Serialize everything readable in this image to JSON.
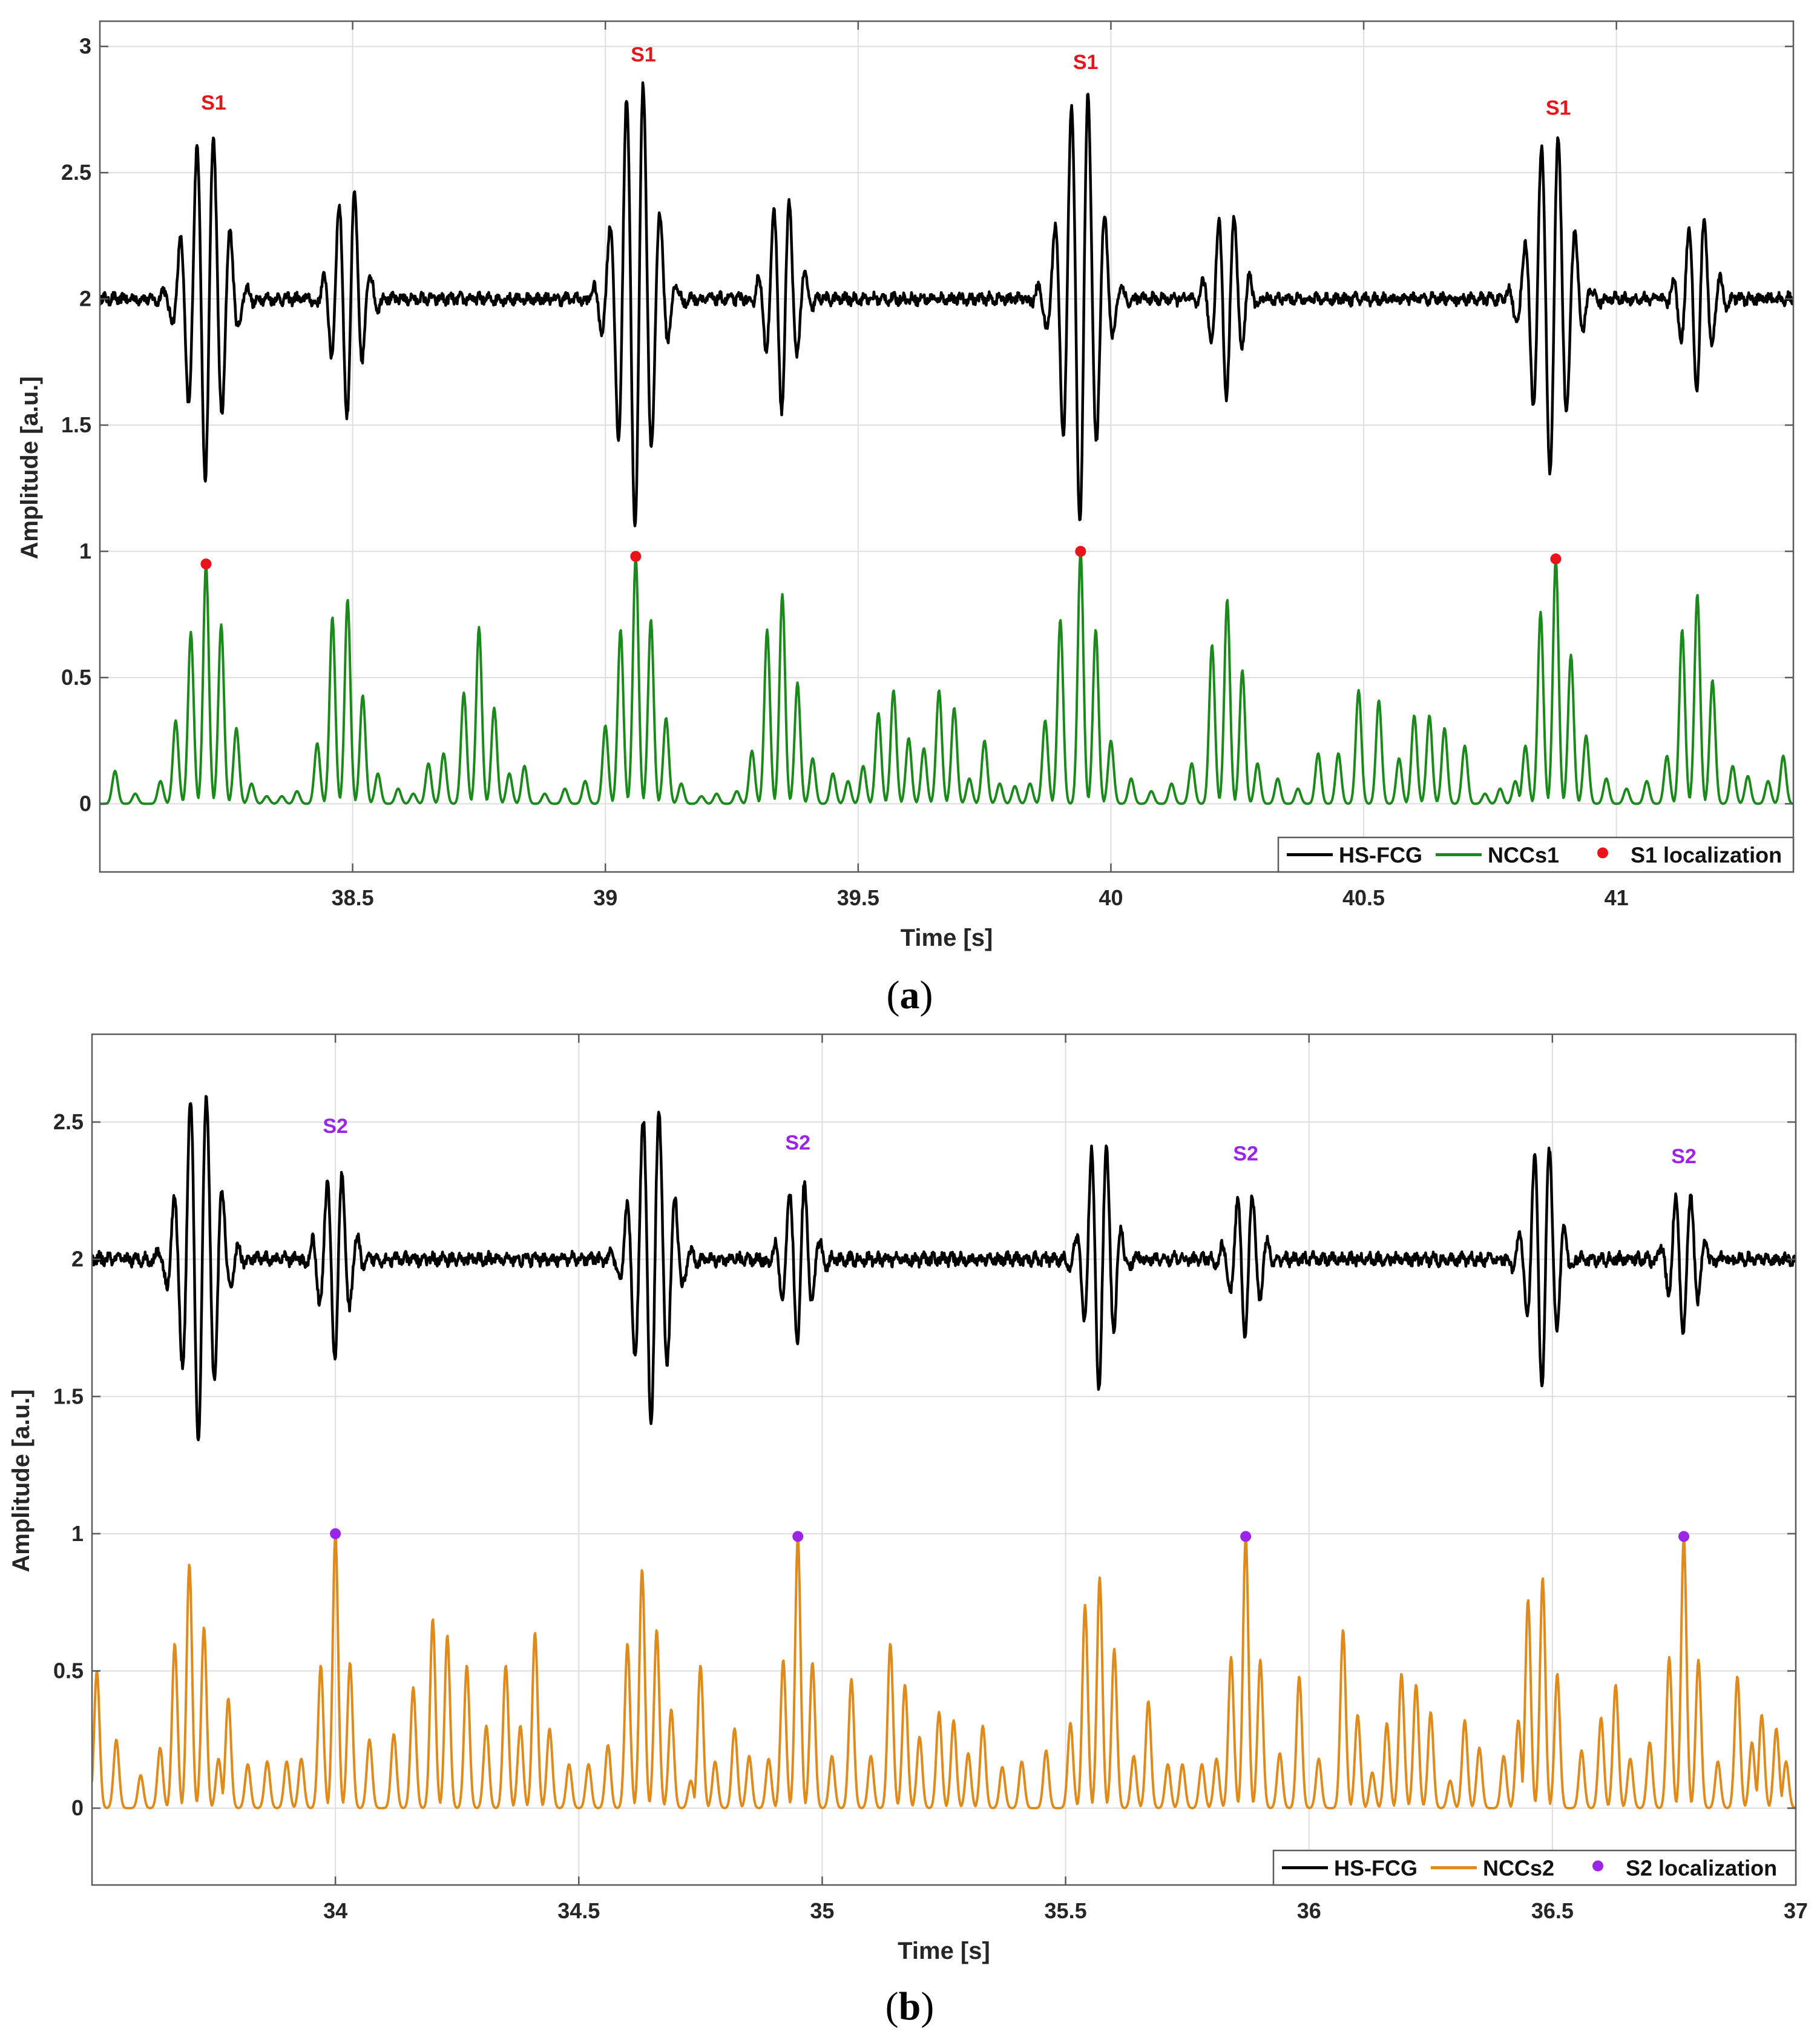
{
  "chart_data": [
    {
      "type": "line",
      "panel_label": "a",
      "xlabel": "Time [s]",
      "ylabel": "Amplitude [a.u.]",
      "xlim": [
        38.0,
        41.35
      ],
      "ylim": [
        -0.27,
        3.1
      ],
      "xticks": [
        38.5,
        39,
        39.5,
        40,
        40.5,
        41
      ],
      "xtick_labels": [
        "38.5",
        "39",
        "39.5",
        "40",
        "40.5",
        "41"
      ],
      "yticks": [
        0,
        0.5,
        1,
        1.5,
        2,
        2.5,
        3
      ],
      "ytick_labels": [
        "0",
        "0.5",
        "1",
        "1.5",
        "2",
        "2.5",
        "3"
      ],
      "grid": true,
      "legend_position": "bottom-right",
      "legend": [
        "HS-FCG",
        "NCCs1",
        "S1 localization"
      ],
      "colors": {
        "signal": "#000000",
        "ncc": "#1a8a1a",
        "marker": "#e8141a",
        "annotation": "#e8141a"
      },
      "signal": {
        "name": "HS-FCG",
        "baseline": 2.0,
        "bursts": [
          {
            "t": 38.21,
            "peak": 2.67,
            "trough": 1.26,
            "label": "S1"
          },
          {
            "t": 38.49,
            "peak": 2.52,
            "trough": 1.58,
            "label": ""
          },
          {
            "t": 39.06,
            "peak": 2.87,
            "trough": 1.03,
            "label": "S1"
          },
          {
            "t": 39.35,
            "peak": 2.51,
            "trough": 1.64,
            "label": ""
          },
          {
            "t": 39.94,
            "peak": 2.85,
            "trough": 1.08,
            "label": "S1"
          },
          {
            "t": 40.23,
            "peak": 2.41,
            "trough": 1.65,
            "label": ""
          },
          {
            "t": 40.87,
            "peak": 2.64,
            "trough": 1.25,
            "label": "S1"
          },
          {
            "t": 41.16,
            "peak": 2.37,
            "trough": 1.65,
            "label": ""
          }
        ]
      },
      "ncc": {
        "name": "NCCs1",
        "peaks": [
          [
            38.03,
            0.13
          ],
          [
            38.07,
            0.04
          ],
          [
            38.12,
            0.09
          ],
          [
            38.15,
            0.33
          ],
          [
            38.18,
            0.68
          ],
          [
            38.21,
            0.95
          ],
          [
            38.24,
            0.71
          ],
          [
            38.27,
            0.3
          ],
          [
            38.3,
            0.08
          ],
          [
            38.33,
            0.03
          ],
          [
            38.36,
            0.03
          ],
          [
            38.39,
            0.05
          ],
          [
            38.43,
            0.24
          ],
          [
            38.46,
            0.74
          ],
          [
            38.49,
            0.81
          ],
          [
            38.52,
            0.43
          ],
          [
            38.55,
            0.12
          ],
          [
            38.59,
            0.06
          ],
          [
            38.62,
            0.04
          ],
          [
            38.65,
            0.16
          ],
          [
            38.68,
            0.2
          ],
          [
            38.72,
            0.44
          ],
          [
            38.75,
            0.7
          ],
          [
            38.78,
            0.38
          ],
          [
            38.81,
            0.12
          ],
          [
            38.84,
            0.15
          ],
          [
            38.88,
            0.04
          ],
          [
            38.92,
            0.06
          ],
          [
            38.96,
            0.09
          ],
          [
            39.0,
            0.31
          ],
          [
            39.03,
            0.69
          ],
          [
            39.06,
            0.98
          ],
          [
            39.09,
            0.73
          ],
          [
            39.12,
            0.34
          ],
          [
            39.15,
            0.08
          ],
          [
            39.19,
            0.03
          ],
          [
            39.22,
            0.04
          ],
          [
            39.26,
            0.05
          ],
          [
            39.29,
            0.21
          ],
          [
            39.32,
            0.69
          ],
          [
            39.35,
            0.83
          ],
          [
            39.38,
            0.48
          ],
          [
            39.41,
            0.18
          ],
          [
            39.45,
            0.12
          ],
          [
            39.48,
            0.09
          ],
          [
            39.51,
            0.15
          ],
          [
            39.54,
            0.36
          ],
          [
            39.57,
            0.45
          ],
          [
            39.6,
            0.26
          ],
          [
            39.63,
            0.22
          ],
          [
            39.66,
            0.45
          ],
          [
            39.69,
            0.38
          ],
          [
            39.72,
            0.1
          ],
          [
            39.75,
            0.25
          ],
          [
            39.78,
            0.08
          ],
          [
            39.81,
            0.07
          ],
          [
            39.84,
            0.08
          ],
          [
            39.87,
            0.33
          ],
          [
            39.9,
            0.73
          ],
          [
            39.94,
            1.0
          ],
          [
            39.97,
            0.69
          ],
          [
            40.0,
            0.25
          ],
          [
            40.04,
            0.1
          ],
          [
            40.08,
            0.05
          ],
          [
            40.12,
            0.08
          ],
          [
            40.16,
            0.16
          ],
          [
            40.2,
            0.63
          ],
          [
            40.23,
            0.81
          ],
          [
            40.26,
            0.53
          ],
          [
            40.29,
            0.16
          ],
          [
            40.33,
            0.1
          ],
          [
            40.37,
            0.06
          ],
          [
            40.41,
            0.2
          ],
          [
            40.45,
            0.2
          ],
          [
            40.49,
            0.45
          ],
          [
            40.53,
            0.41
          ],
          [
            40.57,
            0.18
          ],
          [
            40.6,
            0.35
          ],
          [
            40.63,
            0.35
          ],
          [
            40.66,
            0.3
          ],
          [
            40.7,
            0.23
          ],
          [
            40.74,
            0.04
          ],
          [
            40.77,
            0.06
          ],
          [
            40.8,
            0.09
          ],
          [
            40.82,
            0.23
          ],
          [
            40.85,
            0.76
          ],
          [
            40.88,
            0.97
          ],
          [
            40.91,
            0.59
          ],
          [
            40.94,
            0.27
          ],
          [
            40.98,
            0.1
          ],
          [
            41.02,
            0.06
          ],
          [
            41.06,
            0.09
          ],
          [
            41.1,
            0.19
          ],
          [
            41.13,
            0.69
          ],
          [
            41.16,
            0.83
          ],
          [
            41.19,
            0.49
          ],
          [
            41.23,
            0.15
          ],
          [
            41.26,
            0.11
          ],
          [
            41.3,
            0.09
          ],
          [
            41.33,
            0.19
          ]
        ]
      },
      "localization": {
        "name": "S1 localization",
        "points": [
          [
            38.21,
            0.95
          ],
          [
            39.06,
            0.98
          ],
          [
            39.94,
            1.0
          ],
          [
            40.88,
            0.97
          ]
        ]
      },
      "annotations": [
        {
          "text": "S1",
          "x": 38.225,
          "y": 2.75
        },
        {
          "text": "S1",
          "x": 39.075,
          "y": 2.94
        },
        {
          "text": "S1",
          "x": 39.95,
          "y": 2.91
        },
        {
          "text": "S1",
          "x": 40.885,
          "y": 2.73
        }
      ]
    },
    {
      "type": "line",
      "panel_label": "b",
      "xlabel": "Time [s]",
      "ylabel": "Amplitude [a.u.]",
      "xlim": [
        33.5,
        37.0
      ],
      "ylim": [
        -0.28,
        2.82
      ],
      "xticks": [
        34,
        34.5,
        35,
        35.5,
        36,
        36.5,
        37
      ],
      "xtick_labels": [
        "34",
        "34.5",
        "35",
        "35.5",
        "36",
        "36.5",
        "37"
      ],
      "yticks": [
        0,
        0.5,
        1,
        1.5,
        2,
        2.5
      ],
      "ytick_labels": [
        "0",
        "0.5",
        "1",
        "1.5",
        "2",
        "2.5"
      ],
      "grid": true,
      "legend_position": "bottom-right",
      "legend": [
        "HS-FCG",
        "NCCs2",
        "S2 localization"
      ],
      "colors": {
        "signal": "#000000",
        "ncc": "#e08a1a",
        "marker": "#9a24e8",
        "annotation": "#9a24e8"
      },
      "signal": {
        "name": "HS-FCG",
        "baseline": 2.0,
        "bursts": [
          {
            "t": 33.72,
            "peak": 2.6,
            "trough": 1.27,
            "label": ""
          },
          {
            "t": 34.0,
            "peak": 2.41,
            "trough": 1.7,
            "label": "S2"
          },
          {
            "t": 34.65,
            "peak": 2.53,
            "trough": 1.34,
            "label": ""
          },
          {
            "t": 34.95,
            "peak": 2.36,
            "trough": 1.75,
            "label": "S2"
          },
          {
            "t": 35.57,
            "peak": 2.44,
            "trough": 1.49,
            "label": ""
          },
          {
            "t": 35.87,
            "peak": 2.31,
            "trough": 1.77,
            "label": "S2"
          },
          {
            "t": 36.48,
            "peak": 2.44,
            "trough": 1.5,
            "label": ""
          },
          {
            "t": 36.77,
            "peak": 2.31,
            "trough": 1.77,
            "label": "S2"
          }
        ]
      },
      "ncc": {
        "name": "NCCs2",
        "peaks": [
          [
            33.51,
            0.5
          ],
          [
            33.55,
            0.25
          ],
          [
            33.6,
            0.12
          ],
          [
            33.64,
            0.22
          ],
          [
            33.67,
            0.6
          ],
          [
            33.7,
            0.89
          ],
          [
            33.73,
            0.66
          ],
          [
            33.76,
            0.18
          ],
          [
            33.78,
            0.4
          ],
          [
            33.82,
            0.16
          ],
          [
            33.86,
            0.17
          ],
          [
            33.9,
            0.17
          ],
          [
            33.93,
            0.18
          ],
          [
            33.97,
            0.52
          ],
          [
            34.0,
            1.0
          ],
          [
            34.03,
            0.53
          ],
          [
            34.07,
            0.25
          ],
          [
            34.12,
            0.27
          ],
          [
            34.16,
            0.44
          ],
          [
            34.2,
            0.69
          ],
          [
            34.23,
            0.63
          ],
          [
            34.27,
            0.52
          ],
          [
            34.31,
            0.3
          ],
          [
            34.35,
            0.52
          ],
          [
            34.38,
            0.3
          ],
          [
            34.41,
            0.64
          ],
          [
            34.44,
            0.29
          ],
          [
            34.48,
            0.16
          ],
          [
            34.52,
            0.16
          ],
          [
            34.56,
            0.23
          ],
          [
            34.6,
            0.6
          ],
          [
            34.63,
            0.87
          ],
          [
            34.66,
            0.65
          ],
          [
            34.69,
            0.36
          ],
          [
            34.73,
            0.1
          ],
          [
            34.75,
            0.52
          ],
          [
            34.78,
            0.17
          ],
          [
            34.82,
            0.29
          ],
          [
            34.85,
            0.19
          ],
          [
            34.89,
            0.18
          ],
          [
            34.92,
            0.54
          ],
          [
            34.95,
            0.99
          ],
          [
            34.98,
            0.53
          ],
          [
            35.02,
            0.19
          ],
          [
            35.06,
            0.47
          ],
          [
            35.1,
            0.19
          ],
          [
            35.14,
            0.6
          ],
          [
            35.17,
            0.45
          ],
          [
            35.2,
            0.26
          ],
          [
            35.24,
            0.35
          ],
          [
            35.27,
            0.32
          ],
          [
            35.3,
            0.2
          ],
          [
            35.33,
            0.3
          ],
          [
            35.37,
            0.15
          ],
          [
            35.41,
            0.17
          ],
          [
            35.46,
            0.21
          ],
          [
            35.51,
            0.31
          ],
          [
            35.54,
            0.74
          ],
          [
            35.57,
            0.84
          ],
          [
            35.6,
            0.58
          ],
          [
            35.64,
            0.19
          ],
          [
            35.67,
            0.39
          ],
          [
            35.71,
            0.16
          ],
          [
            35.74,
            0.16
          ],
          [
            35.78,
            0.16
          ],
          [
            35.81,
            0.18
          ],
          [
            35.84,
            0.55
          ],
          [
            35.87,
            0.99
          ],
          [
            35.9,
            0.54
          ],
          [
            35.94,
            0.2
          ],
          [
            35.98,
            0.48
          ],
          [
            36.02,
            0.18
          ],
          [
            36.07,
            0.65
          ],
          [
            36.1,
            0.34
          ],
          [
            36.13,
            0.13
          ],
          [
            36.16,
            0.31
          ],
          [
            36.19,
            0.49
          ],
          [
            36.22,
            0.45
          ],
          [
            36.25,
            0.35
          ],
          [
            36.29,
            0.1
          ],
          [
            36.32,
            0.32
          ],
          [
            36.35,
            0.22
          ],
          [
            36.4,
            0.19
          ],
          [
            36.43,
            0.32
          ],
          [
            36.45,
            0.76
          ],
          [
            36.48,
            0.84
          ],
          [
            36.51,
            0.49
          ],
          [
            36.56,
            0.21
          ],
          [
            36.6,
            0.33
          ],
          [
            36.63,
            0.45
          ],
          [
            36.66,
            0.18
          ],
          [
            36.7,
            0.24
          ],
          [
            36.74,
            0.55
          ],
          [
            36.77,
            0.99
          ],
          [
            36.8,
            0.54
          ],
          [
            36.84,
            0.17
          ],
          [
            36.88,
            0.48
          ],
          [
            36.91,
            0.24
          ],
          [
            36.93,
            0.34
          ],
          [
            36.96,
            0.29
          ],
          [
            36.98,
            0.17
          ]
        ]
      },
      "localization": {
        "name": "S2 localization",
        "points": [
          [
            34.0,
            1.0
          ],
          [
            34.95,
            0.99
          ],
          [
            35.87,
            0.99
          ],
          [
            36.77,
            0.99
          ]
        ]
      },
      "annotations": [
        {
          "text": "S2",
          "x": 34.0,
          "y": 2.46
        },
        {
          "text": "S2",
          "x": 34.95,
          "y": 2.4
        },
        {
          "text": "S2",
          "x": 35.87,
          "y": 2.36
        },
        {
          "text": "S2",
          "x": 36.77,
          "y": 2.35
        }
      ]
    }
  ]
}
